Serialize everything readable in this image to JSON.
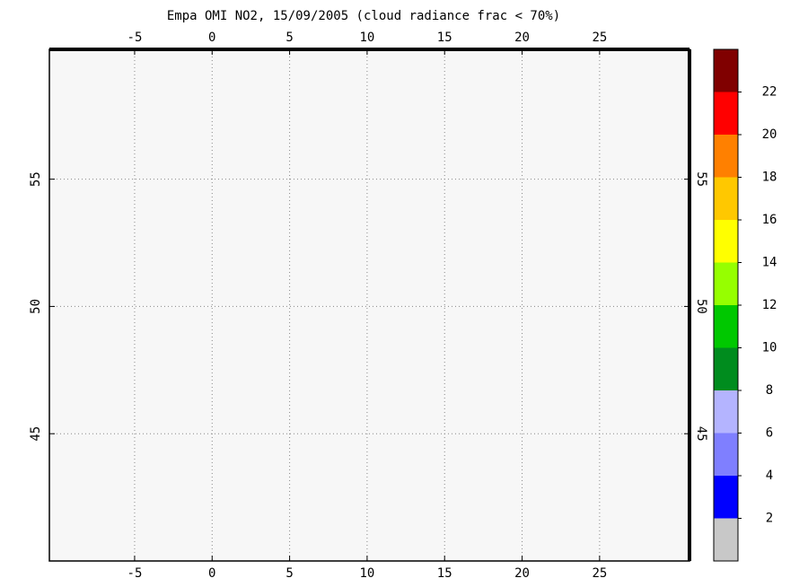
{
  "map": {
    "title": "Empa OMI NO2, 15/09/2005 (cloud radiance frac < 70%)",
    "xlim": [
      -10.5,
      30.8
    ],
    "ylim": [
      40,
      60.1
    ],
    "lon_ticks": [
      -5,
      0,
      5,
      10,
      15,
      20,
      25
    ],
    "lat_ticks": [
      45,
      50,
      55
    ],
    "grid": true
  },
  "colorbar": {
    "range": [
      0,
      24
    ],
    "ticks": [
      2,
      4,
      6,
      8,
      10,
      12,
      14,
      16,
      18,
      20,
      22
    ],
    "colors": [
      "#c8c8c8",
      "#0000ff",
      "#7f7fff",
      "#b4b4ff",
      "#008c1e",
      "#00c800",
      "#96ff00",
      "#ffff00",
      "#ffc800",
      "#ff8000",
      "#ff0000",
      "#800000"
    ]
  }
}
